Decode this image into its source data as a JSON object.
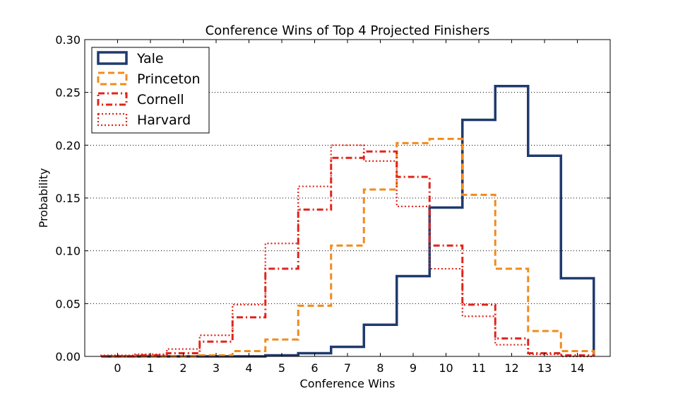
{
  "chart_data": {
    "type": "line",
    "subtype": "step-histogram",
    "title": "Conference Wins of Top 4 Projected Finishers",
    "xlabel": "Conference Wins",
    "ylabel": "Probability",
    "xlim": [
      -1,
      15
    ],
    "ylim": [
      0,
      0.3
    ],
    "xticks": [
      0,
      1,
      2,
      3,
      4,
      5,
      6,
      7,
      8,
      9,
      10,
      11,
      12,
      13,
      14
    ],
    "yticks": [
      0.0,
      0.05,
      0.1,
      0.15,
      0.2,
      0.25,
      0.3
    ],
    "ytick_labels": [
      "0.00",
      "0.05",
      "0.10",
      "0.15",
      "0.20",
      "0.25",
      "0.30"
    ],
    "grid": "horizontal dotted",
    "legend_position": "upper-left",
    "x": [
      0,
      1,
      2,
      3,
      4,
      5,
      6,
      7,
      8,
      9,
      10,
      11,
      12,
      13,
      14
    ],
    "series": [
      {
        "name": "Yale",
        "color": "#1f3a6e",
        "style": "solid",
        "values": [
          0.0,
          0.0,
          0.0,
          0.0,
          0.0,
          0.001,
          0.003,
          0.009,
          0.03,
          0.076,
          0.141,
          0.224,
          0.256,
          0.19,
          0.074
        ]
      },
      {
        "name": "Princeton",
        "color": "#f08c1e",
        "style": "dashed",
        "values": [
          0.0,
          0.0,
          0.0,
          0.001,
          0.005,
          0.016,
          0.048,
          0.105,
          0.158,
          0.202,
          0.206,
          0.153,
          0.083,
          0.024,
          0.005
        ]
      },
      {
        "name": "Cornell",
        "color": "#e0251b",
        "style": "dashdot",
        "values": [
          0.0,
          0.001,
          0.003,
          0.014,
          0.037,
          0.083,
          0.139,
          0.188,
          0.194,
          0.17,
          0.105,
          0.049,
          0.017,
          0.003,
          0.001
        ]
      },
      {
        "name": "Harvard",
        "color": "#e0251b",
        "style": "dotted",
        "values": [
          0.001,
          0.002,
          0.007,
          0.02,
          0.049,
          0.107,
          0.161,
          0.2,
          0.185,
          0.142,
          0.083,
          0.038,
          0.011,
          0.002,
          0.0
        ]
      }
    ]
  }
}
